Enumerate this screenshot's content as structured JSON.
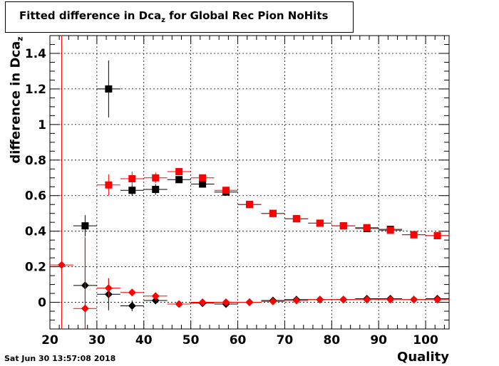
{
  "chart_data": {
    "type": "scatter",
    "title": "Fitted difference in Dca",
    "title_sub": "z",
    "title_suffix": " for Global Rec Pion NoHits",
    "xlabel": "Quality",
    "ylabel": "difference in Dca",
    "ylabel_sub": "z",
    "xlim": [
      20,
      105
    ],
    "ylim": [
      -0.15,
      1.5
    ],
    "grid": true,
    "x_ticks": [
      20,
      30,
      40,
      50,
      60,
      70,
      80,
      90,
      100
    ],
    "y_ticks": [
      0,
      0.2,
      0.4,
      0.6,
      0.8,
      1,
      1.2,
      1.4
    ],
    "vline": {
      "x": 22.5,
      "color": "#ff0000"
    },
    "series": [
      {
        "marker": "square",
        "color": "#000000",
        "points": [
          {
            "x": 27.5,
            "y": 0.43,
            "xerr": 2.5,
            "yerr": 0.06
          },
          {
            "x": 32.5,
            "y": 1.2,
            "xerr": 2.5,
            "yerr": 0.16
          },
          {
            "x": 37.5,
            "y": 0.63,
            "xerr": 2.5,
            "yerr": 0.03
          },
          {
            "x": 42.5,
            "y": 0.635,
            "xerr": 2.5,
            "yerr": 0.03
          },
          {
            "x": 47.5,
            "y": 0.69,
            "xerr": 2.5,
            "yerr": 0.02
          },
          {
            "x": 52.5,
            "y": 0.665,
            "xerr": 2.5,
            "yerr": 0.015
          },
          {
            "x": 57.5,
            "y": 0.62,
            "xerr": 2.5,
            "yerr": 0.01
          },
          {
            "x": 62.5,
            "y": 0.55,
            "xerr": 2.5,
            "yerr": 0.01
          },
          {
            "x": 67.5,
            "y": 0.5,
            "xerr": 2.5,
            "yerr": 0.01
          },
          {
            "x": 72.5,
            "y": 0.47,
            "xerr": 2.5,
            "yerr": 0.005
          },
          {
            "x": 77.5,
            "y": 0.445,
            "xerr": 2.5,
            "yerr": 0.005
          },
          {
            "x": 82.5,
            "y": 0.43,
            "xerr": 2.5,
            "yerr": 0.005
          },
          {
            "x": 87.5,
            "y": 0.415,
            "xerr": 2.5,
            "yerr": 0.005
          },
          {
            "x": 92.5,
            "y": 0.41,
            "xerr": 2.5,
            "yerr": 0.005
          },
          {
            "x": 97.5,
            "y": 0.38,
            "xerr": 2.5,
            "yerr": 0.005
          },
          {
            "x": 102.5,
            "y": 0.375,
            "xerr": 2.5,
            "yerr": 0.005
          }
        ]
      },
      {
        "marker": "square",
        "color": "#ff0000",
        "points": [
          {
            "x": 32.5,
            "y": 0.66,
            "xerr": 2.5,
            "yerr": 0.06
          },
          {
            "x": 37.5,
            "y": 0.695,
            "xerr": 2.5,
            "yerr": 0.04
          },
          {
            "x": 42.5,
            "y": 0.7,
            "xerr": 2.5,
            "yerr": 0.03
          },
          {
            "x": 47.5,
            "y": 0.735,
            "xerr": 2.5,
            "yerr": 0.02
          },
          {
            "x": 52.5,
            "y": 0.7,
            "xerr": 2.5,
            "yerr": 0.015
          },
          {
            "x": 57.5,
            "y": 0.63,
            "xerr": 2.5,
            "yerr": 0.01
          },
          {
            "x": 62.5,
            "y": 0.55,
            "xerr": 2.5,
            "yerr": 0.01
          },
          {
            "x": 67.5,
            "y": 0.5,
            "xerr": 2.5,
            "yerr": 0.01
          },
          {
            "x": 72.5,
            "y": 0.47,
            "xerr": 2.5,
            "yerr": 0.005
          },
          {
            "x": 77.5,
            "y": 0.445,
            "xerr": 2.5,
            "yerr": 0.005
          },
          {
            "x": 82.5,
            "y": 0.43,
            "xerr": 2.5,
            "yerr": 0.005
          },
          {
            "x": 87.5,
            "y": 0.42,
            "xerr": 2.5,
            "yerr": 0.005
          },
          {
            "x": 92.5,
            "y": 0.405,
            "xerr": 2.5,
            "yerr": 0.005
          },
          {
            "x": 97.5,
            "y": 0.38,
            "xerr": 2.5,
            "yerr": 0.005
          },
          {
            "x": 102.5,
            "y": 0.375,
            "xerr": 2.5,
            "yerr": 0.005
          }
        ]
      },
      {
        "marker": "diamond",
        "color": "#000000",
        "points": [
          {
            "x": 27.5,
            "y": 0.095,
            "xerr": 2.5,
            "yerr": 0.27
          },
          {
            "x": 32.5,
            "y": 0.045,
            "xerr": 2.5,
            "yerr": 0.09
          },
          {
            "x": 37.5,
            "y": -0.02,
            "xerr": 2.5,
            "yerr": 0.03
          },
          {
            "x": 42.5,
            "y": 0.01,
            "xerr": 2.5,
            "yerr": 0.02
          },
          {
            "x": 52.5,
            "y": -0.005,
            "xerr": 2.5,
            "yerr": 0.01
          },
          {
            "x": 57.5,
            "y": -0.01,
            "xerr": 2.5,
            "yerr": 0.01
          },
          {
            "x": 62.5,
            "y": 0.0,
            "xerr": 2.5,
            "yerr": 0.005
          },
          {
            "x": 67.5,
            "y": 0.01,
            "xerr": 2.5,
            "yerr": 0.005
          },
          {
            "x": 72.5,
            "y": 0.015,
            "xerr": 2.5,
            "yerr": 0.005
          },
          {
            "x": 77.5,
            "y": 0.015,
            "xerr": 2.5,
            "yerr": 0.005
          },
          {
            "x": 82.5,
            "y": 0.015,
            "xerr": 2.5,
            "yerr": 0.005
          },
          {
            "x": 87.5,
            "y": 0.02,
            "xerr": 2.5,
            "yerr": 0.005
          },
          {
            "x": 92.5,
            "y": 0.02,
            "xerr": 2.5,
            "yerr": 0.005
          },
          {
            "x": 97.5,
            "y": 0.015,
            "xerr": 2.5,
            "yerr": 0.005
          },
          {
            "x": 102.5,
            "y": 0.02,
            "xerr": 2.5,
            "yerr": 0.005
          }
        ]
      },
      {
        "marker": "diamond",
        "color": "#ff0000",
        "points": [
          {
            "x": 22.5,
            "y": 0.21,
            "xerr": 2.5,
            "yerr": 0.0
          },
          {
            "x": 27.5,
            "y": -0.035,
            "xerr": 2.5,
            "yerr": 0.4
          },
          {
            "x": 32.5,
            "y": 0.08,
            "xerr": 2.5,
            "yerr": 0.05
          },
          {
            "x": 37.5,
            "y": 0.055,
            "xerr": 2.5,
            "yerr": 0.02
          },
          {
            "x": 42.5,
            "y": 0.035,
            "xerr": 2.5,
            "yerr": 0.015
          },
          {
            "x": 47.5,
            "y": -0.01,
            "xerr": 2.5,
            "yerr": 0.01
          },
          {
            "x": 52.5,
            "y": 0.0,
            "xerr": 2.5,
            "yerr": 0.01
          },
          {
            "x": 57.5,
            "y": 0.0,
            "xerr": 2.5,
            "yerr": 0.005
          },
          {
            "x": 62.5,
            "y": 0.0,
            "xerr": 2.5,
            "yerr": 0.005
          },
          {
            "x": 67.5,
            "y": 0.005,
            "xerr": 2.5,
            "yerr": 0.005
          },
          {
            "x": 72.5,
            "y": 0.01,
            "xerr": 2.5,
            "yerr": 0.005
          },
          {
            "x": 77.5,
            "y": 0.015,
            "xerr": 2.5,
            "yerr": 0.005
          },
          {
            "x": 82.5,
            "y": 0.015,
            "xerr": 2.5,
            "yerr": 0.005
          },
          {
            "x": 87.5,
            "y": 0.015,
            "xerr": 2.5,
            "yerr": 0.005
          },
          {
            "x": 92.5,
            "y": 0.015,
            "xerr": 2.5,
            "yerr": 0.005
          },
          {
            "x": 97.5,
            "y": 0.015,
            "xerr": 2.5,
            "yerr": 0.005
          },
          {
            "x": 102.5,
            "y": 0.015,
            "xerr": 2.5,
            "yerr": 0.005
          }
        ]
      }
    ]
  },
  "footer": {
    "timestamp": "Sat Jun 30 13:57:08 2018"
  }
}
